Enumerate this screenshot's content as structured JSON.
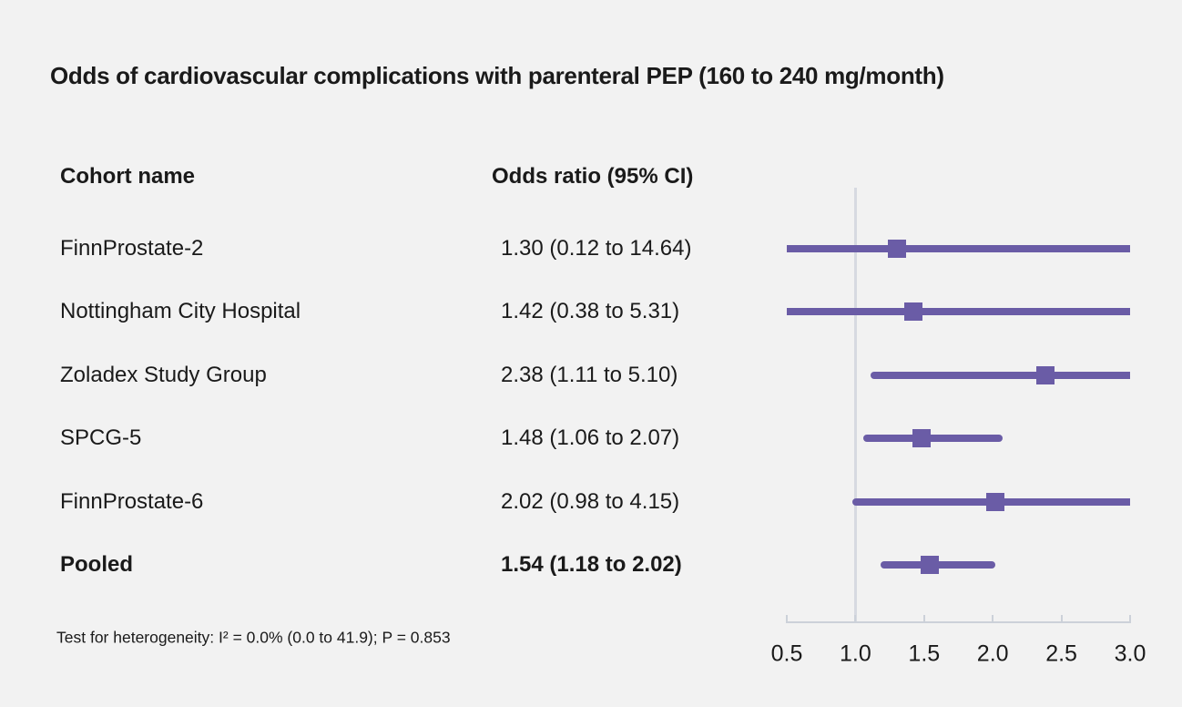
{
  "title": "Odds of cardiovascular complications with parenteral PEP (160 to 240 mg/month)",
  "table": {
    "cohort_header": "Cohort name",
    "odds_header": "Odds ratio (95% CI)"
  },
  "footnote": "Test for heterogeneity: I² = 0.0% (0.0 to 41.9); P = 0.853",
  "colors": {
    "plot_purple": "#6a5ca6",
    "axis_gray": "#ccd1d9",
    "refline_gray": "#d7dae1",
    "background": "#f2f2f2",
    "text": "#1a1a1a"
  },
  "chart_data": {
    "type": "forest",
    "title": "Odds of cardiovascular complications with parenteral PEP (160 to 240 mg/month)",
    "xlim": [
      0.5,
      3.0
    ],
    "reference_line": 1.0,
    "tick_values": [
      0.5,
      1.0,
      1.5,
      2.0,
      2.5,
      3.0
    ],
    "tick_labels": [
      "0.5",
      "1.0",
      "1.5",
      "2.0",
      "2.5",
      "3.0"
    ],
    "grid": false,
    "rows": [
      {
        "label": "FinnProstate-2",
        "or": 1.3,
        "ci_low": 0.12,
        "ci_high": 14.64,
        "display": "1.30 (0.12 to 14.64)",
        "bold": false
      },
      {
        "label": "Nottingham City Hospital",
        "or": 1.42,
        "ci_low": 0.38,
        "ci_high": 5.31,
        "display": "1.42 (0.38 to 5.31)",
        "bold": false
      },
      {
        "label": "Zoladex Study Group",
        "or": 2.38,
        "ci_low": 1.11,
        "ci_high": 5.1,
        "display": "2.38 (1.11 to 5.10)",
        "bold": false
      },
      {
        "label": "SPCG-5",
        "or": 1.48,
        "ci_low": 1.06,
        "ci_high": 2.07,
        "display": "1.48 (1.06 to 2.07)",
        "bold": false
      },
      {
        "label": "FinnProstate-6",
        "or": 2.02,
        "ci_low": 0.98,
        "ci_high": 4.15,
        "display": "2.02 (0.98 to 4.15)",
        "bold": false
      },
      {
        "label": "Pooled",
        "or": 1.54,
        "ci_low": 1.18,
        "ci_high": 2.02,
        "display": "1.54 (1.18 to 2.02)",
        "bold": true
      }
    ]
  }
}
